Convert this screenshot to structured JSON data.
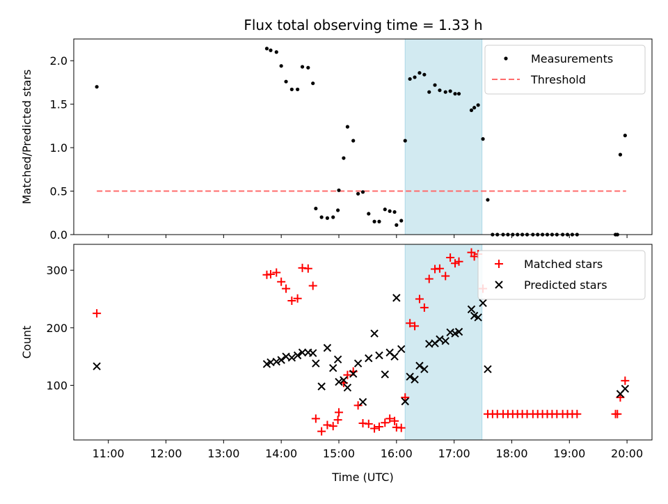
{
  "figure": {
    "title": "Flux total observing time = 1.33 h"
  },
  "chart_data": [
    {
      "type": "scatter",
      "ylabel": "Matched/Predicted stars",
      "xlabel": "",
      "x_unit": "time of day (UTC)",
      "xlim": [
        "10:24",
        "20:26"
      ],
      "ylim": [
        0,
        2.25
      ],
      "y_ticks": [
        0.0,
        0.5,
        1.0,
        1.5,
        2.0
      ],
      "y_tick_labels": [
        "0.0",
        "0.5",
        "1.0",
        "1.5",
        "2.0"
      ],
      "x_ticks": [
        "11:00",
        "12:00",
        "13:00",
        "14:00",
        "15:00",
        "16:00",
        "17:00",
        "18:00",
        "19:00",
        "20:00"
      ],
      "show_x_tick_labels": false,
      "legend_position": "top-right",
      "grid": false,
      "highlight_span": {
        "from": "16:09",
        "to": "17:29",
        "color": "#add8e6"
      },
      "threshold": {
        "name": "Threshold",
        "value": 0.5,
        "from": "10:48",
        "to": "19:59",
        "color": "#ff6b6b",
        "style": "dashed"
      },
      "series": [
        {
          "name": "Measurements",
          "marker": "dot",
          "color": "#000000",
          "points": [
            [
              "10:48",
              1.7
            ],
            [
              "13:45",
              2.14
            ],
            [
              "13:49",
              2.12
            ],
            [
              "13:55",
              2.1
            ],
            [
              "14:00",
              1.94
            ],
            [
              "14:05",
              1.76
            ],
            [
              "14:11",
              1.67
            ],
            [
              "14:17",
              1.67
            ],
            [
              "14:22",
              1.93
            ],
            [
              "14:28",
              1.92
            ],
            [
              "14:33",
              1.74
            ],
            [
              "14:36",
              0.3
            ],
            [
              "14:42",
              0.2
            ],
            [
              "14:48",
              0.19
            ],
            [
              "14:54",
              0.2
            ],
            [
              "14:59",
              0.28
            ],
            [
              "15:00",
              0.51
            ],
            [
              "15:05",
              0.88
            ],
            [
              "15:09",
              1.24
            ],
            [
              "15:15",
              1.08
            ],
            [
              "15:20",
              0.47
            ],
            [
              "15:25",
              0.49
            ],
            [
              "15:31",
              0.24
            ],
            [
              "15:37",
              0.15
            ],
            [
              "15:42",
              0.15
            ],
            [
              "15:48",
              0.29
            ],
            [
              "15:53",
              0.27
            ],
            [
              "15:58",
              0.26
            ],
            [
              "16:00",
              0.11
            ],
            [
              "16:05",
              0.16
            ],
            [
              "16:09",
              1.08
            ],
            [
              "16:14",
              1.79
            ],
            [
              "16:19",
              1.81
            ],
            [
              "16:24",
              1.86
            ],
            [
              "16:29",
              1.84
            ],
            [
              "16:34",
              1.64
            ],
            [
              "16:40",
              1.72
            ],
            [
              "16:45",
              1.66
            ],
            [
              "16:51",
              1.64
            ],
            [
              "16:56",
              1.65
            ],
            [
              "17:01",
              1.62
            ],
            [
              "17:05",
              1.62
            ],
            [
              "17:18",
              1.43
            ],
            [
              "17:21",
              1.46
            ],
            [
              "17:25",
              1.49
            ],
            [
              "17:30",
              1.1
            ],
            [
              "17:35",
              0.4
            ],
            [
              "17:40",
              0
            ],
            [
              "17:45",
              0
            ],
            [
              "17:51",
              0
            ],
            [
              "17:56",
              0
            ],
            [
              "18:01",
              0
            ],
            [
              "18:06",
              0
            ],
            [
              "18:11",
              0
            ],
            [
              "18:16",
              0
            ],
            [
              "18:22",
              0
            ],
            [
              "18:27",
              0
            ],
            [
              "18:32",
              0
            ],
            [
              "18:37",
              0
            ],
            [
              "18:42",
              0
            ],
            [
              "18:47",
              0
            ],
            [
              "18:53",
              0
            ],
            [
              "18:58",
              0
            ],
            [
              "19:03",
              0
            ],
            [
              "19:08",
              0
            ],
            [
              "19:48",
              0
            ],
            [
              "19:50",
              0
            ],
            [
              "19:53",
              0.92
            ],
            [
              "19:58",
              1.14
            ]
          ]
        },
        {
          "name": "Threshold",
          "marker": "dashed-line",
          "color": "#ff6b6b"
        }
      ]
    },
    {
      "type": "scatter",
      "ylabel": "Count",
      "xlabel": "Time (UTC)",
      "x_unit": "time of day (UTC)",
      "xlim": [
        "10:24",
        "20:26"
      ],
      "ylim": [
        5,
        345
      ],
      "y_ticks": [
        100,
        200,
        300
      ],
      "y_tick_labels": [
        "100",
        "200",
        "300"
      ],
      "x_ticks": [
        "11:00",
        "12:00",
        "13:00",
        "14:00",
        "15:00",
        "16:00",
        "17:00",
        "18:00",
        "19:00",
        "20:00"
      ],
      "x_tick_labels": [
        "11:00",
        "12:00",
        "13:00",
        "14:00",
        "15:00",
        "16:00",
        "17:00",
        "18:00",
        "19:00",
        "20:00"
      ],
      "legend_position": "top-right",
      "grid": false,
      "highlight_span": {
        "from": "16:09",
        "to": "17:29",
        "color": "#add8e6"
      },
      "series": [
        {
          "name": "Matched stars",
          "marker": "plus",
          "color": "#ff0000",
          "points": [
            [
              "10:48",
              225
            ],
            [
              "13:45",
              292
            ],
            [
              "13:49",
              293
            ],
            [
              "13:55",
              296
            ],
            [
              "14:00",
              280
            ],
            [
              "14:05",
              268
            ],
            [
              "14:11",
              247
            ],
            [
              "14:17",
              251
            ],
            [
              "14:22",
              304
            ],
            [
              "14:28",
              303
            ],
            [
              "14:33",
              273
            ],
            [
              "14:36",
              42
            ],
            [
              "14:42",
              20
            ],
            [
              "14:48",
              31
            ],
            [
              "14:54",
              29
            ],
            [
              "14:59",
              40
            ],
            [
              "15:00",
              53
            ],
            [
              "15:05",
              104
            ],
            [
              "15:09",
              118
            ],
            [
              "15:15",
              124
            ],
            [
              "15:20",
              65
            ],
            [
              "15:25",
              34
            ],
            [
              "15:31",
              33
            ],
            [
              "15:37",
              25
            ],
            [
              "15:42",
              28
            ],
            [
              "15:48",
              35
            ],
            [
              "15:53",
              42
            ],
            [
              "15:58",
              38
            ],
            [
              "16:00",
              27
            ],
            [
              "16:05",
              26
            ],
            [
              "16:09",
              79
            ],
            [
              "16:14",
              208
            ],
            [
              "16:19",
              203
            ],
            [
              "16:24",
              250
            ],
            [
              "16:29",
              235
            ],
            [
              "16:34",
              285
            ],
            [
              "16:40",
              302
            ],
            [
              "16:45",
              303
            ],
            [
              "16:51",
              290
            ],
            [
              "16:56",
              322
            ],
            [
              "17:01",
              312
            ],
            [
              "17:05",
              315
            ],
            [
              "17:18",
              331
            ],
            [
              "17:21",
              324
            ],
            [
              "17:25",
              328
            ],
            [
              "17:30",
              268
            ],
            [
              "17:35",
              50
            ],
            [
              "17:40",
              50
            ],
            [
              "17:45",
              50
            ],
            [
              "17:51",
              50
            ],
            [
              "17:56",
              50
            ],
            [
              "18:01",
              50
            ],
            [
              "18:06",
              50
            ],
            [
              "18:11",
              50
            ],
            [
              "18:16",
              50
            ],
            [
              "18:22",
              50
            ],
            [
              "18:27",
              50
            ],
            [
              "18:32",
              50
            ],
            [
              "18:37",
              50
            ],
            [
              "18:42",
              50
            ],
            [
              "18:47",
              50
            ],
            [
              "18:53",
              50
            ],
            [
              "18:58",
              50
            ],
            [
              "19:03",
              50
            ],
            [
              "19:08",
              50
            ],
            [
              "19:48",
              50
            ],
            [
              "19:50",
              50
            ],
            [
              "19:53",
              79
            ],
            [
              "19:58",
              108
            ]
          ]
        },
        {
          "name": "Predicted stars",
          "marker": "x",
          "color": "#000000",
          "points": [
            [
              "10:48",
              133
            ],
            [
              "13:45",
              137
            ],
            [
              "13:49",
              140
            ],
            [
              "13:55",
              141
            ],
            [
              "14:00",
              144
            ],
            [
              "14:05",
              150
            ],
            [
              "14:11",
              148
            ],
            [
              "14:17",
              152
            ],
            [
              "14:22",
              157
            ],
            [
              "14:28",
              157
            ],
            [
              "14:33",
              156
            ],
            [
              "14:36",
              138
            ],
            [
              "14:42",
              98
            ],
            [
              "14:48",
              165
            ],
            [
              "14:54",
              130
            ],
            [
              "14:59",
              145
            ],
            [
              "15:00",
              106
            ],
            [
              "15:05",
              109
            ],
            [
              "15:09",
              96
            ],
            [
              "15:15",
              120
            ],
            [
              "15:20",
              138
            ],
            [
              "15:25",
              71
            ],
            [
              "15:31",
              147
            ],
            [
              "15:37",
              190
            ],
            [
              "15:42",
              152
            ],
            [
              "15:48",
              119
            ],
            [
              "15:53",
              157
            ],
            [
              "15:58",
              150
            ],
            [
              "16:00",
              252
            ],
            [
              "16:05",
              163
            ],
            [
              "16:09",
              72
            ],
            [
              "16:14",
              115
            ],
            [
              "16:19",
              110
            ],
            [
              "16:24",
              134
            ],
            [
              "16:29",
              128
            ],
            [
              "16:34",
              172
            ],
            [
              "16:40",
              173
            ],
            [
              "16:45",
              180
            ],
            [
              "16:51",
              177
            ],
            [
              "16:56",
              192
            ],
            [
              "17:01",
              190
            ],
            [
              "17:05",
              193
            ],
            [
              "17:18",
              232
            ],
            [
              "17:21",
              221
            ],
            [
              "17:25",
              218
            ],
            [
              "17:30",
              243
            ],
            [
              "17:35",
              128
            ],
            [
              "19:53",
              85
            ],
            [
              "19:58",
              94
            ]
          ]
        }
      ]
    }
  ]
}
